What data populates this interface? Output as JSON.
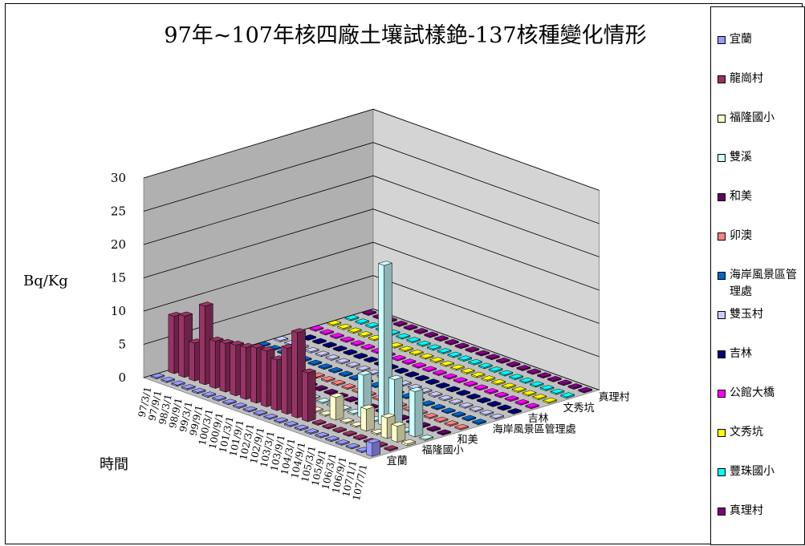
{
  "chart_data": {
    "type": "bar",
    "variant": "3d-bar",
    "title": "97年~107年核四廠土壤試樣銫-137核種變化情形",
    "ylabel": "Bq/Kg",
    "xlabel": "時間",
    "ylim": [
      0,
      30
    ],
    "yticks": [
      0,
      5,
      10,
      15,
      20,
      25,
      30
    ],
    "grid": true,
    "legend_position": "right",
    "dates": [
      "97/3/1",
      "97/9/1",
      "98/3/1",
      "98/9/1",
      "99/3/1",
      "99/9/1",
      "100/3/1",
      "100/9/1",
      "101/3/1",
      "101/9/1",
      "102/3/1",
      "102/9/1",
      "103/3/1",
      "103/9/1",
      "104/3/1",
      "104/9/1",
      "105/3/1",
      "105/9/1",
      "106/3/1",
      "106/9/1",
      "107/1/1",
      "107/7/1"
    ],
    "depth_axis_labels": [
      "宜蘭",
      "福隆國小",
      "和美",
      "海岸風景區管理處",
      "吉林",
      "文秀坑",
      "真理村"
    ],
    "series": [
      {
        "name": "宜蘭",
        "color": "#9999ff",
        "values": [
          0.2,
          0.2,
          0.2,
          0.2,
          0.2,
          0.2,
          0.2,
          0.2,
          0.2,
          0.2,
          0.2,
          0.2,
          0.2,
          0.2,
          0.2,
          0.2,
          0.2,
          0.2,
          0.2,
          0.2,
          0.2,
          2.0
        ]
      },
      {
        "name": "龍崗村",
        "color": "#993366",
        "values": [
          8.6,
          9.2,
          5.7,
          11.8,
          7.1,
          7.3,
          7.6,
          7.8,
          8.3,
          8.4,
          7.6,
          9.9,
          12.8,
          7.3,
          0.2,
          0.2,
          0.2,
          0.2,
          0.2,
          0.2,
          0.2,
          0.2
        ]
      },
      {
        "name": "福隆國小",
        "color": "#ffffcc",
        "values": [
          0.2,
          0.2,
          0.2,
          0.2,
          0.2,
          0.2,
          0.2,
          0.2,
          0.2,
          0.2,
          0.2,
          0.2,
          0.2,
          0.2,
          3.4,
          0.2,
          0.2,
          3.3,
          0.2,
          3.1,
          2.4,
          0.3
        ]
      },
      {
        "name": "雙溪",
        "color": "#ccffff",
        "values": [
          0.2,
          0.2,
          0.2,
          0.2,
          0.2,
          0.2,
          0.2,
          0.2,
          0.2,
          0.2,
          0.2,
          0.2,
          0.2,
          0.2,
          0.2,
          6.5,
          0.2,
          24.1,
          7.5,
          0.2,
          6.8,
          0.2
        ]
      },
      {
        "name": "和美",
        "color": "#660066",
        "values": [
          0.2,
          0.2,
          0.2,
          0.2,
          0.2,
          0.2,
          0.2,
          0.2,
          0.2,
          0.2,
          0.2,
          0.2,
          0.2,
          0.2,
          0.2,
          0.2,
          0.2,
          0.2,
          0.2,
          0.2,
          0.2,
          0.2
        ]
      },
      {
        "name": "卯澳",
        "color": "#ff8080",
        "values": [
          0.2,
          0.2,
          0.2,
          0.2,
          0.2,
          0.2,
          0.2,
          0.2,
          0.2,
          0.2,
          0.2,
          0.2,
          0.2,
          0.2,
          0.2,
          0.2,
          0.2,
          0.2,
          0.2,
          0.2,
          0.2,
          0.2
        ]
      },
      {
        "name": "海岸風景區管理處",
        "color": "#0066cc",
        "values": [
          0.2,
          0.2,
          0.2,
          0.2,
          0.2,
          0.2,
          0.2,
          0.2,
          0.2,
          0.2,
          0.2,
          0.2,
          0.2,
          0.2,
          0.2,
          0.2,
          0.2,
          0.2,
          0.2,
          0.2,
          0.2,
          0.2
        ]
      },
      {
        "name": "雙玉村",
        "color": "#ccccff",
        "values": [
          0.2,
          0.2,
          0.2,
          0.2,
          0.2,
          0.2,
          0.2,
          0.2,
          0.2,
          0.2,
          0.2,
          0.2,
          0.2,
          0.2,
          0.2,
          0.2,
          0.2,
          0.2,
          0.2,
          0.2,
          0.2,
          0.2
        ]
      },
      {
        "name": "吉林",
        "color": "#000080",
        "values": [
          0.2,
          0.2,
          0.2,
          0.2,
          0.2,
          0.2,
          0.2,
          0.2,
          0.2,
          0.2,
          0.2,
          0.2,
          0.2,
          0.2,
          0.2,
          0.2,
          0.2,
          0.2,
          0.2,
          0.2,
          0.2,
          0.2
        ]
      },
      {
        "name": "公館大橋",
        "color": "#ff00ff",
        "values": [
          0.2,
          0.2,
          0.2,
          0.2,
          0.2,
          0.2,
          0.2,
          0.2,
          0.2,
          0.2,
          0.2,
          0.2,
          0.2,
          0.2,
          0.2,
          0.2,
          0.2,
          0.2,
          0.2,
          0.2,
          0.2,
          0.2
        ]
      },
      {
        "name": "文秀坑",
        "color": "#ffff00",
        "values": [
          0.2,
          0.2,
          0.2,
          0.2,
          0.2,
          0.2,
          0.2,
          0.2,
          0.2,
          0.2,
          0.2,
          0.2,
          0.2,
          0.2,
          0.2,
          0.2,
          0.2,
          0.2,
          0.2,
          0.2,
          0.2,
          0.2
        ]
      },
      {
        "name": "豐珠國小",
        "color": "#00ffff",
        "values": [
          0.2,
          0.2,
          0.2,
          0.2,
          0.2,
          0.2,
          0.2,
          0.2,
          0.2,
          0.2,
          0.2,
          0.2,
          0.2,
          0.2,
          0.2,
          0.2,
          0.2,
          0.2,
          0.2,
          0.2,
          0.2,
          0.2
        ]
      },
      {
        "name": "真理村",
        "color": "#800080",
        "values": [
          0.2,
          0.2,
          0.2,
          0.2,
          0.2,
          0.2,
          0.2,
          0.2,
          0.2,
          0.2,
          0.2,
          0.2,
          0.2,
          0.2,
          0.2,
          0.2,
          0.2,
          0.2,
          0.2,
          0.2,
          0.2,
          0.2
        ]
      }
    ]
  }
}
